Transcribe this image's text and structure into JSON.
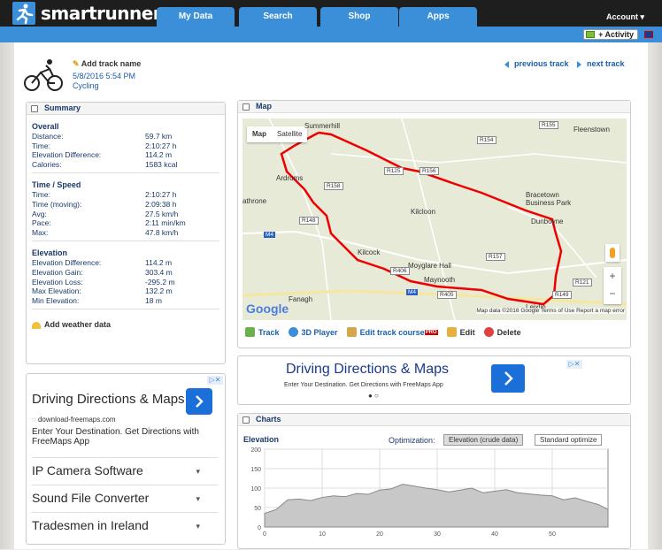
{
  "nav": {
    "logo": "smartrunner",
    "tabs": [
      "My Data",
      "Search",
      "Shop",
      "Apps"
    ],
    "account": "Account ▾",
    "add_activity": "+ Activity"
  },
  "track": {
    "add_name": "Add track name",
    "date": "5/8/2016 5:54 PM",
    "type": "Cycling",
    "prev": "previous track",
    "next": "next track"
  },
  "summary": {
    "title": "Summary",
    "overall_title": "Overall",
    "overall": [
      {
        "k": "Distance:",
        "v": "59.7 km"
      },
      {
        "k": "Time:",
        "v": "2:10:27 h"
      },
      {
        "k": "Elevation Difference:",
        "v": "114.2 m"
      },
      {
        "k": "Calories:",
        "v": "1583 kcal"
      }
    ],
    "speed_title": "Time / Speed",
    "speed": [
      {
        "k": "Time:",
        "v": "2:10:27 h"
      },
      {
        "k": "Time (moving):",
        "v": "2:09:38 h"
      },
      {
        "k": "Avg:",
        "v": "27.5 km/h"
      },
      {
        "k": "Pace:",
        "v": "2:11 min/km"
      },
      {
        "k": "Max:",
        "v": "47.8 km/h"
      }
    ],
    "elev_title": "Elevation",
    "elevation": [
      {
        "k": "Elevation Difference:",
        "v": "114.2 m"
      },
      {
        "k": "Elevation Gain:",
        "v": "303.4 m"
      },
      {
        "k": "Elevation Loss:",
        "v": "-295.2 m"
      },
      {
        "k": "Max Elevation:",
        "v": "132.2 m"
      },
      {
        "k": "Min Elevation:",
        "v": "18 m"
      }
    ],
    "weather": "Add weather data"
  },
  "ad_left": {
    "title": "Driving Directions & Maps",
    "url": "download-freemaps.com",
    "desc": "Enter Your Destination. Get Directions with FreeMaps App",
    "links": [
      "IP Camera Software",
      "Sound File Converter",
      "Tradesmen in Ireland"
    ]
  },
  "map": {
    "title": "Map",
    "toggle_map": "Map",
    "toggle_sat": "Satellite",
    "google": "Google",
    "data": "Map data ©2016 Google   Terms of Use   Report a map error",
    "towns": [
      "Summerhill",
      "Fleenstown",
      "Ardrums",
      "athrone",
      "Kilcloon",
      "Bracetown Business Park",
      "Dunboyne",
      "Kilcock",
      "Moyglare Hall",
      "Maynooth",
      "Fanagh",
      "Leixlip"
    ],
    "roads": [
      "R155",
      "R154",
      "R125",
      "R158",
      "R148",
      "R157",
      "R406",
      "R405",
      "R149",
      "R121",
      "R156"
    ],
    "motorway": "M4",
    "actions": [
      "Track",
      "3D Player",
      "Edit track course",
      "Edit",
      "Delete"
    ],
    "pro": "PRO"
  },
  "ad_mid": {
    "title": "Driving Directions & Maps",
    "sub": "Enter Your Destination. Get Directions with FreeMaps App",
    "dots": "● ○"
  },
  "charts": {
    "title": "Charts",
    "opt_label": "Optimization:",
    "opt_crude": "Elevation (crude data)",
    "opt_std": "Standard optimize"
  },
  "chart_data": {
    "type": "area",
    "title": "Elevation",
    "xlabel": "",
    "ylabel": "",
    "xlim": [
      0,
      59.7
    ],
    "ylim": [
      0,
      200
    ],
    "yticks": [
      0,
      50,
      100,
      150,
      200
    ],
    "xticks": [
      0,
      10,
      20,
      30,
      40,
      50
    ],
    "x": [
      0,
      2,
      4,
      6,
      8,
      10,
      12,
      14,
      16,
      18,
      20,
      22,
      24,
      26,
      28,
      30,
      32,
      34,
      36,
      38,
      40,
      42,
      44,
      46,
      48,
      50,
      52,
      54,
      56,
      58,
      59.7
    ],
    "y": [
      35,
      45,
      70,
      72,
      68,
      76,
      80,
      78,
      86,
      84,
      95,
      98,
      110,
      105,
      100,
      96,
      90,
      95,
      100,
      88,
      92,
      96,
      88,
      85,
      82,
      80,
      70,
      75,
      66,
      58,
      45
    ]
  }
}
